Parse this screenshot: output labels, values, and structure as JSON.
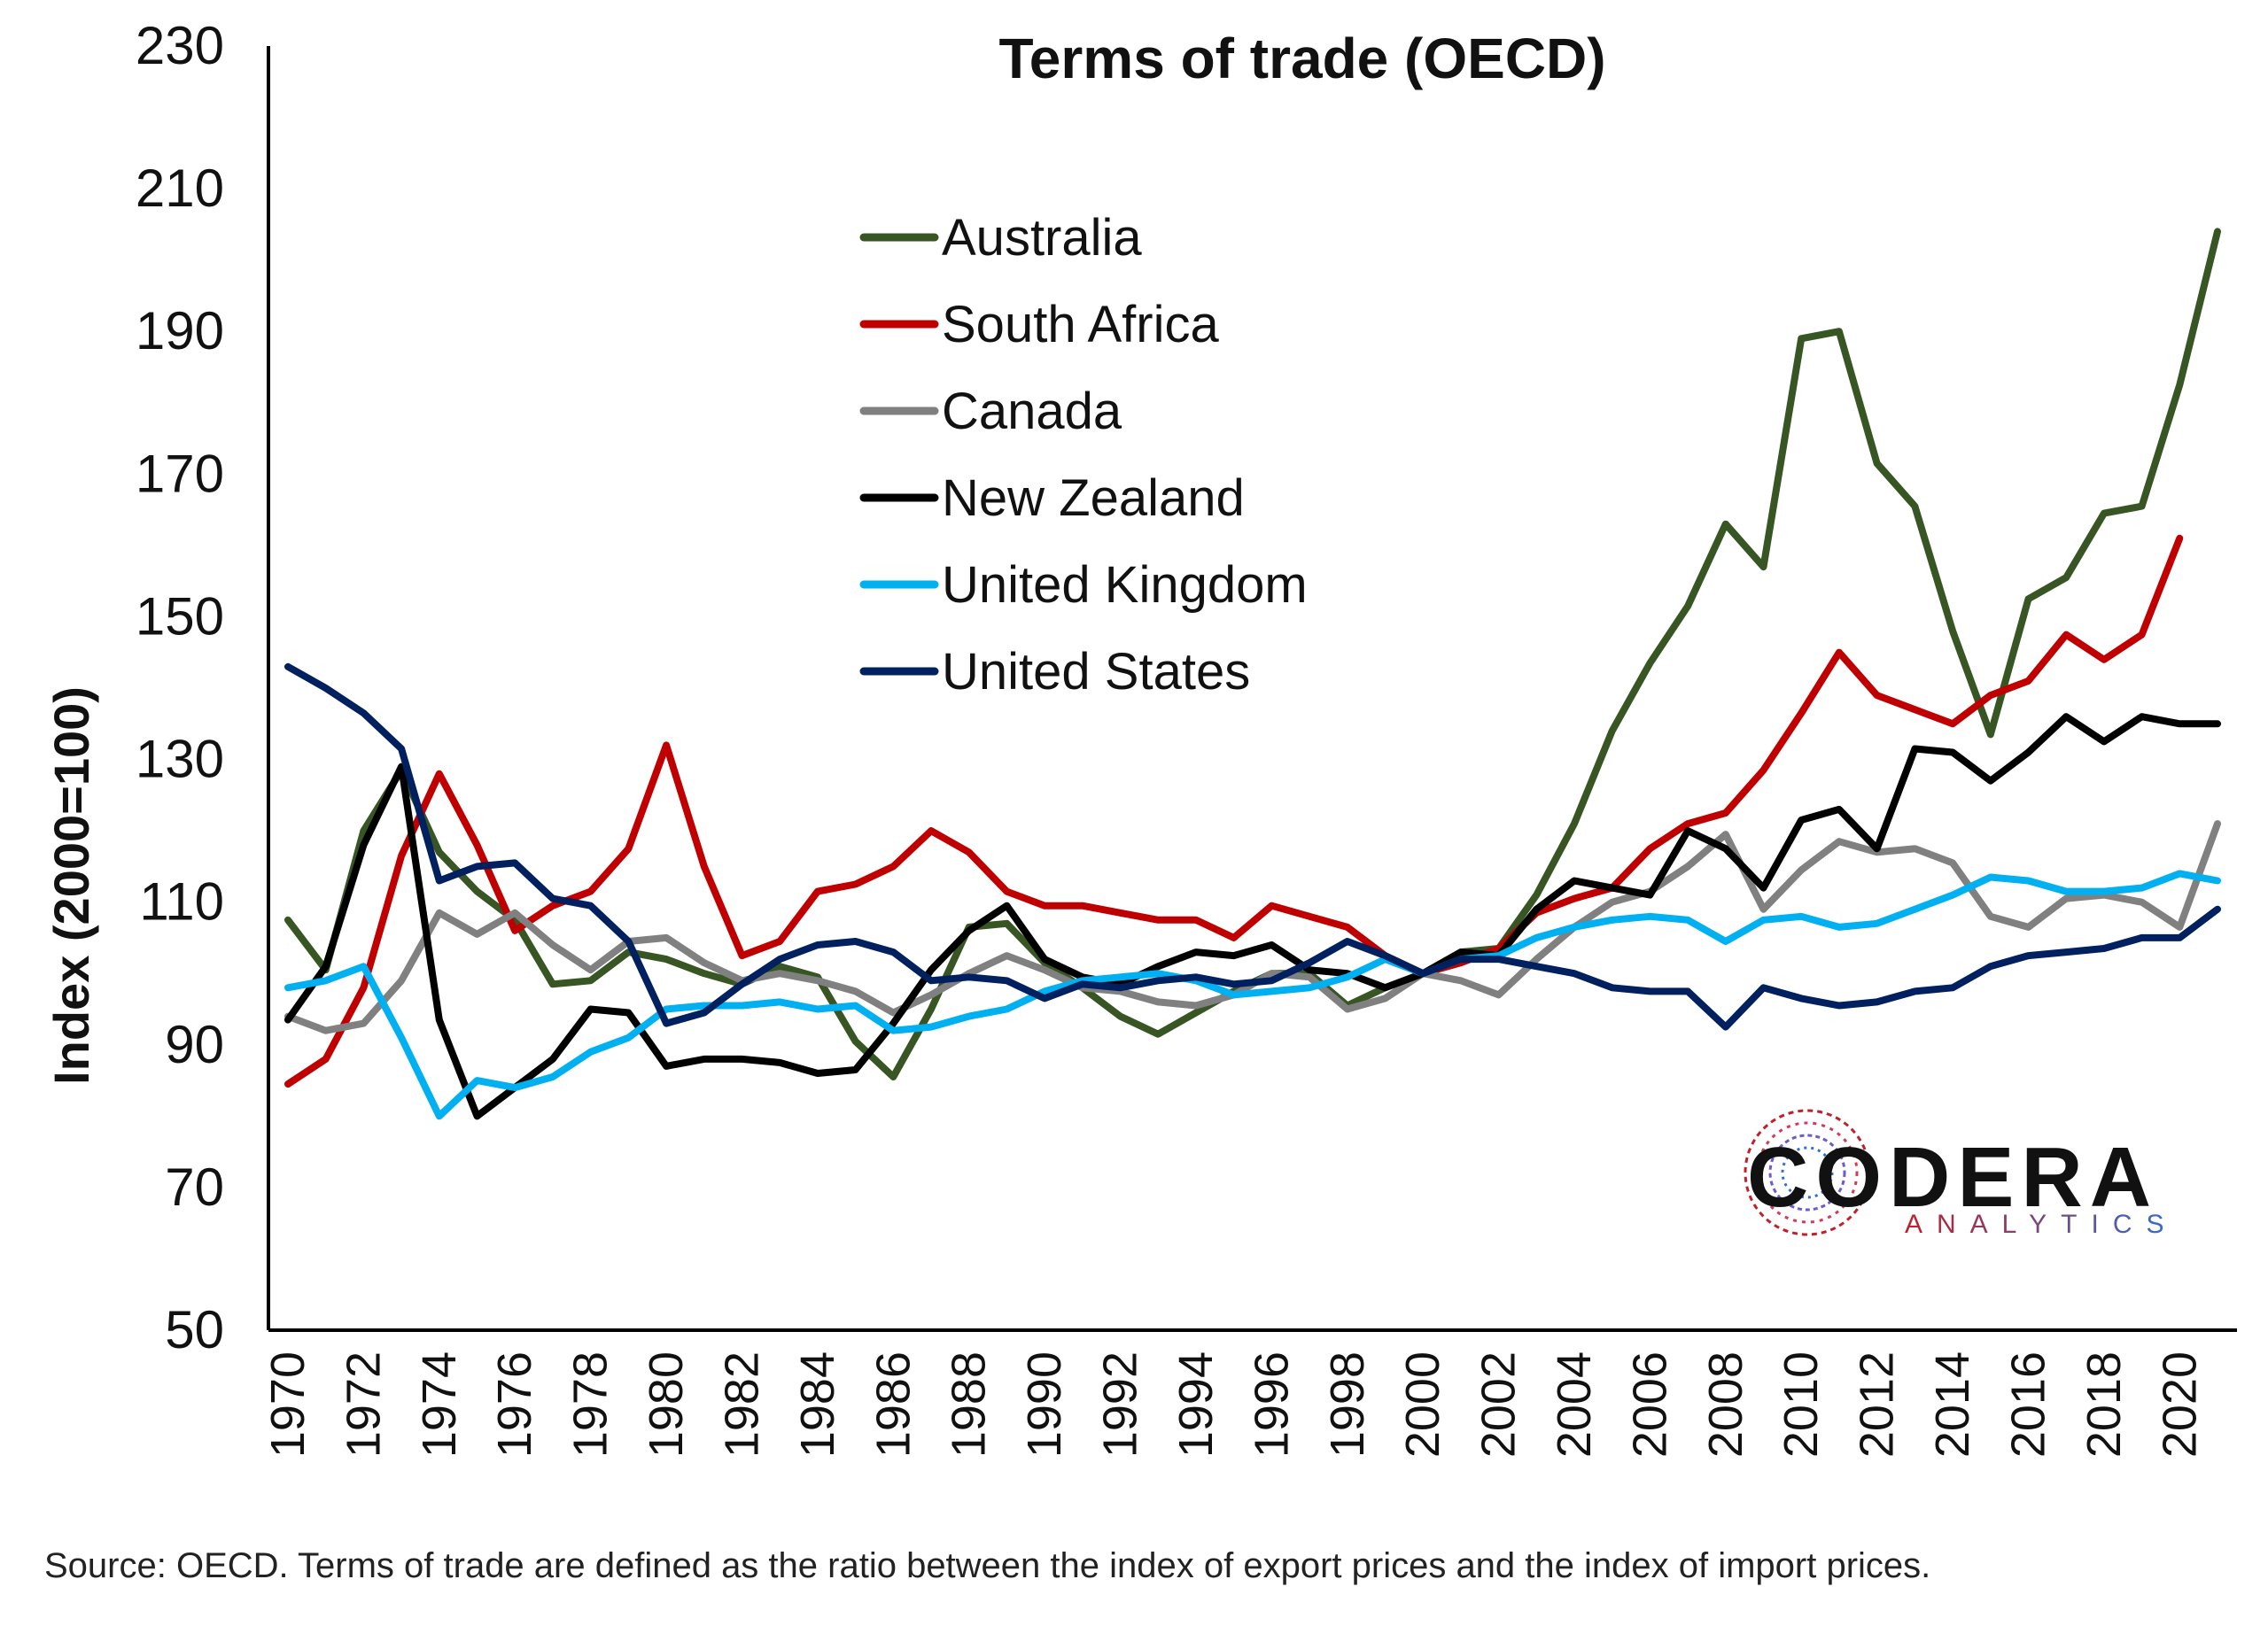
{
  "colors": {
    "Australia": "#375623",
    "South Africa": "#c00000",
    "Canada": "#808080",
    "New Zealand": "#000000",
    "United Kingdom": "#00b0f0",
    "United States": "#002060",
    "logo_red": "#c0202a",
    "logo_blue": "#2f6fd0"
  },
  "logo": {
    "word": "CODERA",
    "sub": "ANALYTICS"
  },
  "source_note": "Source: OECD. Terms of trade are defined as the ratio between the index of export prices and the index of import prices.",
  "chart_data": {
    "type": "line",
    "title": "Terms of trade (OECD)",
    "xlabel": "",
    "ylabel": "Index (2000=100)",
    "ylim": [
      50,
      230
    ],
    "yticks": [
      50,
      70,
      90,
      110,
      130,
      150,
      170,
      190,
      210,
      230
    ],
    "xlim": [
      1970,
      2021
    ],
    "xticks": [
      1970,
      1972,
      1974,
      1976,
      1978,
      1980,
      1982,
      1984,
      1986,
      1988,
      1990,
      1992,
      1994,
      1996,
      1998,
      2000,
      2002,
      2004,
      2006,
      2008,
      2010,
      2012,
      2014,
      2016,
      2018,
      2020
    ],
    "grid": false,
    "legend_position": "top-center",
    "x": [
      1970,
      1971,
      1972,
      1973,
      1974,
      1975,
      1976,
      1977,
      1978,
      1979,
      1980,
      1981,
      1982,
      1983,
      1984,
      1985,
      1986,
      1987,
      1988,
      1989,
      1990,
      1991,
      1992,
      1993,
      1994,
      1995,
      1996,
      1997,
      1998,
      1999,
      2000,
      2001,
      2002,
      2003,
      2004,
      2005,
      2006,
      2007,
      2008,
      2009,
      2010,
      2011,
      2012,
      2013,
      2014,
      2015,
      2016,
      2017,
      2018,
      2019,
      2020,
      2021
    ],
    "series": [
      {
        "name": "Australia",
        "values": [
          107.5,
          100.5,
          120.0,
          128.5,
          117.0,
          111.5,
          107.5,
          98.5,
          99.0,
          103.0,
          102.0,
          100.0,
          98.5,
          101.0,
          99.5,
          90.5,
          85.5,
          95.0,
          106.5,
          107.0,
          101.5,
          98.0,
          94.0,
          91.5,
          94.5,
          97.5,
          100.0,
          100.0,
          95.5,
          98.0,
          100.0,
          103.0,
          103.5,
          111.0,
          121.0,
          134.0,
          143.5,
          151.5,
          163.0,
          157.0,
          189.0,
          190.0,
          171.5,
          165.5,
          148.0,
          133.5,
          152.5,
          155.5,
          164.5,
          165.5,
          182.5,
          204.0
        ]
      },
      {
        "name": "South Africa",
        "values": [
          84.5,
          88.0,
          98.0,
          116.5,
          128.0,
          118.0,
          106.0,
          109.5,
          111.5,
          117.5,
          132.0,
          115.0,
          102.5,
          104.5,
          111.5,
          112.5,
          115.0,
          120.0,
          117.0,
          111.5,
          109.5,
          109.5,
          108.5,
          107.5,
          107.5,
          105.0,
          109.5,
          108.0,
          106.5,
          102.5,
          100.0,
          101.5,
          103.5,
          108.5,
          110.5,
          112.0,
          117.5,
          121.0,
          122.5,
          128.5,
          136.5,
          145.0,
          139.0,
          137.0,
          135.0,
          139.0,
          141.0,
          147.5,
          144.0,
          147.5,
          161.0,
          null
        ]
      },
      {
        "name": "Canada",
        "values": [
          94.0,
          92.0,
          93.0,
          99.0,
          108.5,
          105.5,
          108.5,
          104.0,
          100.5,
          104.5,
          105.0,
          101.5,
          99.0,
          100.0,
          99.0,
          97.5,
          94.5,
          97.0,
          100.0,
          102.5,
          100.5,
          98.0,
          97.5,
          96.0,
          95.5,
          97.0,
          100.0,
          99.5,
          95.0,
          96.5,
          100.0,
          99.0,
          97.0,
          102.0,
          106.5,
          110.0,
          111.5,
          115.0,
          119.5,
          109.0,
          114.5,
          118.5,
          117.0,
          117.5,
          115.5,
          108.0,
          106.5,
          110.5,
          111.0,
          110.0,
          106.5,
          121.0
        ]
      },
      {
        "name": "New Zealand",
        "values": [
          93.5,
          101.0,
          118.0,
          129.0,
          93.5,
          80.0,
          84.0,
          88.0,
          95.0,
          94.5,
          87.0,
          88.0,
          88.0,
          87.5,
          86.0,
          86.5,
          93.0,
          100.5,
          106.0,
          109.5,
          102.0,
          99.5,
          98.5,
          101.0,
          103.0,
          102.5,
          104.0,
          100.5,
          100.0,
          98.0,
          100.0,
          103.0,
          102.5,
          109.0,
          113.0,
          112.0,
          111.0,
          120.0,
          117.5,
          112.0,
          121.5,
          123.0,
          117.5,
          131.5,
          131.0,
          127.0,
          131.0,
          136.0,
          132.5,
          136.0,
          135.0,
          135.0
        ]
      },
      {
        "name": "United Kingdom",
        "values": [
          98.0,
          99.0,
          101.0,
          91.0,
          80.0,
          85.0,
          84.0,
          85.5,
          89.0,
          91.0,
          95.0,
          95.5,
          95.5,
          96.0,
          95.0,
          95.5,
          92.0,
          92.5,
          94.0,
          95.0,
          97.5,
          99.0,
          99.5,
          100.0,
          99.0,
          97.0,
          97.5,
          98.0,
          99.5,
          102.0,
          100.0,
          102.0,
          102.5,
          105.0,
          106.5,
          107.5,
          108.0,
          107.5,
          104.5,
          107.5,
          108.0,
          106.5,
          107.0,
          109.0,
          111.0,
          113.5,
          113.0,
          111.5,
          111.5,
          112.0,
          114.0,
          113.0
        ]
      },
      {
        "name": "United States",
        "values": [
          143.0,
          140.0,
          136.5,
          131.5,
          113.0,
          115.0,
          115.5,
          110.5,
          109.5,
          104.5,
          93.0,
          94.5,
          98.5,
          102.0,
          104.0,
          104.5,
          103.0,
          99.0,
          99.5,
          99.0,
          96.5,
          98.5,
          98.0,
          99.0,
          99.5,
          98.5,
          99.0,
          101.5,
          104.5,
          102.5,
          100.0,
          102.0,
          102.0,
          101.0,
          100.0,
          98.0,
          97.5,
          97.5,
          92.5,
          98.0,
          96.5,
          95.5,
          96.0,
          97.5,
          98.0,
          101.0,
          102.5,
          103.0,
          103.5,
          105.0,
          105.0,
          109.0
        ]
      }
    ]
  }
}
